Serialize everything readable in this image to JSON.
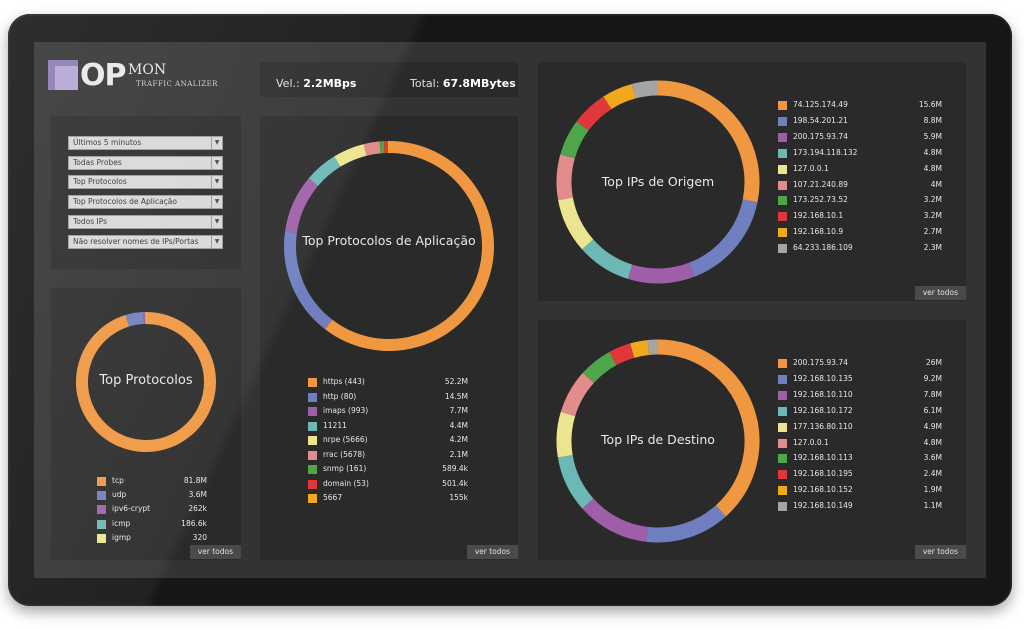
{
  "header": {
    "logo": {
      "op": "OP",
      "mon": "MON",
      "subtitle": "TRAFFIC ANALIZER"
    },
    "speed_label": "Vel.:",
    "speed_value": "2.2MBps",
    "total_label": "Total:",
    "total_value": "67.8MBytes"
  },
  "filters": [
    "Últimos 5 minutos",
    "Todas Probes",
    "Top Protocolos",
    "Top Protocolos de Aplicação",
    "Todos IPs",
    "Não resolver nomes de IPs/Portas"
  ],
  "buttons": {
    "view_all": "ver todos"
  },
  "colors": {
    "palette": [
      "#ef9741",
      "#6f7fc0",
      "#9f5fa8",
      "#6cb8b4",
      "#ece58f",
      "#e38c8c",
      "#4ea54a",
      "#e0383a",
      "#f0a81c",
      "#a4a4a4"
    ]
  },
  "chart_data": [
    {
      "type": "pie",
      "id": "protocols",
      "title": "Top Protocolos",
      "labels": [
        "tcp",
        "udp",
        "ipv6-crypt",
        "icmp",
        "igmp"
      ],
      "display_values": [
        "81.8M",
        "3.6M",
        "262k",
        "186.6k",
        "320"
      ],
      "values": [
        81.8,
        3.6,
        0.262,
        0.1866,
        0.00032
      ]
    },
    {
      "type": "pie",
      "id": "app_protocols",
      "title": "Top Protocolos de Aplicação",
      "labels": [
        "https (443)",
        "http (80)",
        "imaps (993)",
        "11211",
        "nrpe (5666)",
        "rrac (5678)",
        "snmp (161)",
        "domain (53)",
        "5667"
      ],
      "display_values": [
        "52.2M",
        "14.5M",
        "7.7M",
        "4.4M",
        "4.2M",
        "2.1M",
        "589.4k",
        "501.4k",
        "155k"
      ],
      "values": [
        52.2,
        14.5,
        7.7,
        4.4,
        4.2,
        2.1,
        0.5894,
        0.5014,
        0.155
      ]
    },
    {
      "type": "pie",
      "id": "origin_ips",
      "title": "Top IPs de Origem",
      "labels": [
        "74.125.174.49",
        "198.54.201.21",
        "200.175.93.74",
        "173.194.118.132",
        "127.0.0.1",
        "107.21.240.89",
        "173.252.73.52",
        "192.168.10.1",
        "192.168.10.9",
        "64.233.186.109"
      ],
      "display_values": [
        "15.6M",
        "8.8M",
        "5.9M",
        "4.8M",
        "4.8M",
        "4M",
        "3.2M",
        "3.2M",
        "2.7M",
        "2.3M"
      ],
      "values": [
        15.6,
        8.8,
        5.9,
        4.8,
        4.8,
        4.0,
        3.2,
        3.2,
        2.7,
        2.3
      ]
    },
    {
      "type": "pie",
      "id": "destination_ips",
      "title": "Top IPs de Destino",
      "labels": [
        "200.175.93.74",
        "192.168.10.135",
        "192.168.10.110",
        "192.168.10.172",
        "177.136.80.110",
        "127.0.0.1",
        "192.168.10.113",
        "192.168.10.195",
        "192.168.10.152",
        "192.168.10.149"
      ],
      "display_values": [
        "26M",
        "9.2M",
        "7.8M",
        "6.1M",
        "4.9M",
        "4.8M",
        "3.6M",
        "2.4M",
        "1.9M",
        "1.1M"
      ],
      "values": [
        26,
        9.2,
        7.8,
        6.1,
        4.9,
        4.8,
        3.6,
        2.4,
        1.9,
        1.1
      ]
    }
  ]
}
